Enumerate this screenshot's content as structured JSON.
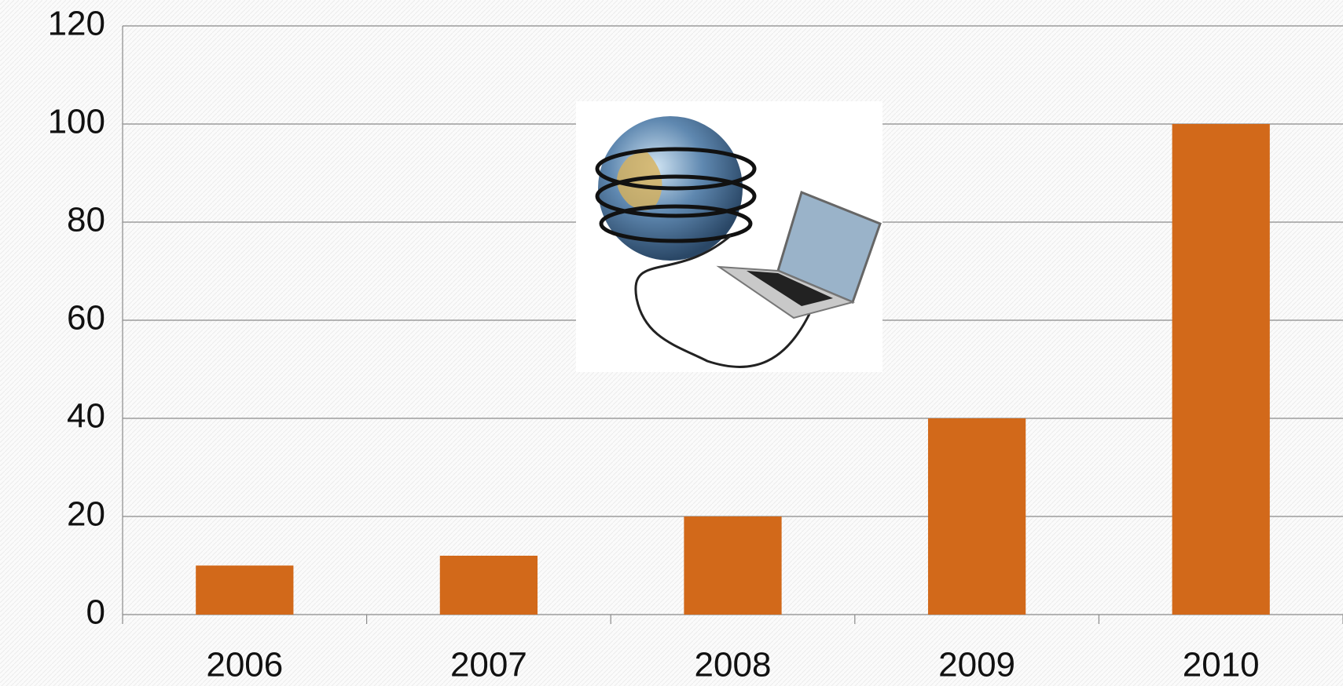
{
  "chart_data": {
    "type": "bar",
    "categories": [
      "2006",
      "2007",
      "2008",
      "2009",
      "2010"
    ],
    "values": [
      10,
      12,
      20,
      40,
      100
    ],
    "color": "#d2691a",
    "ylim": [
      0,
      120
    ],
    "yticks": [
      0,
      20,
      40,
      60,
      80,
      100,
      120
    ],
    "grid": true
  }
}
